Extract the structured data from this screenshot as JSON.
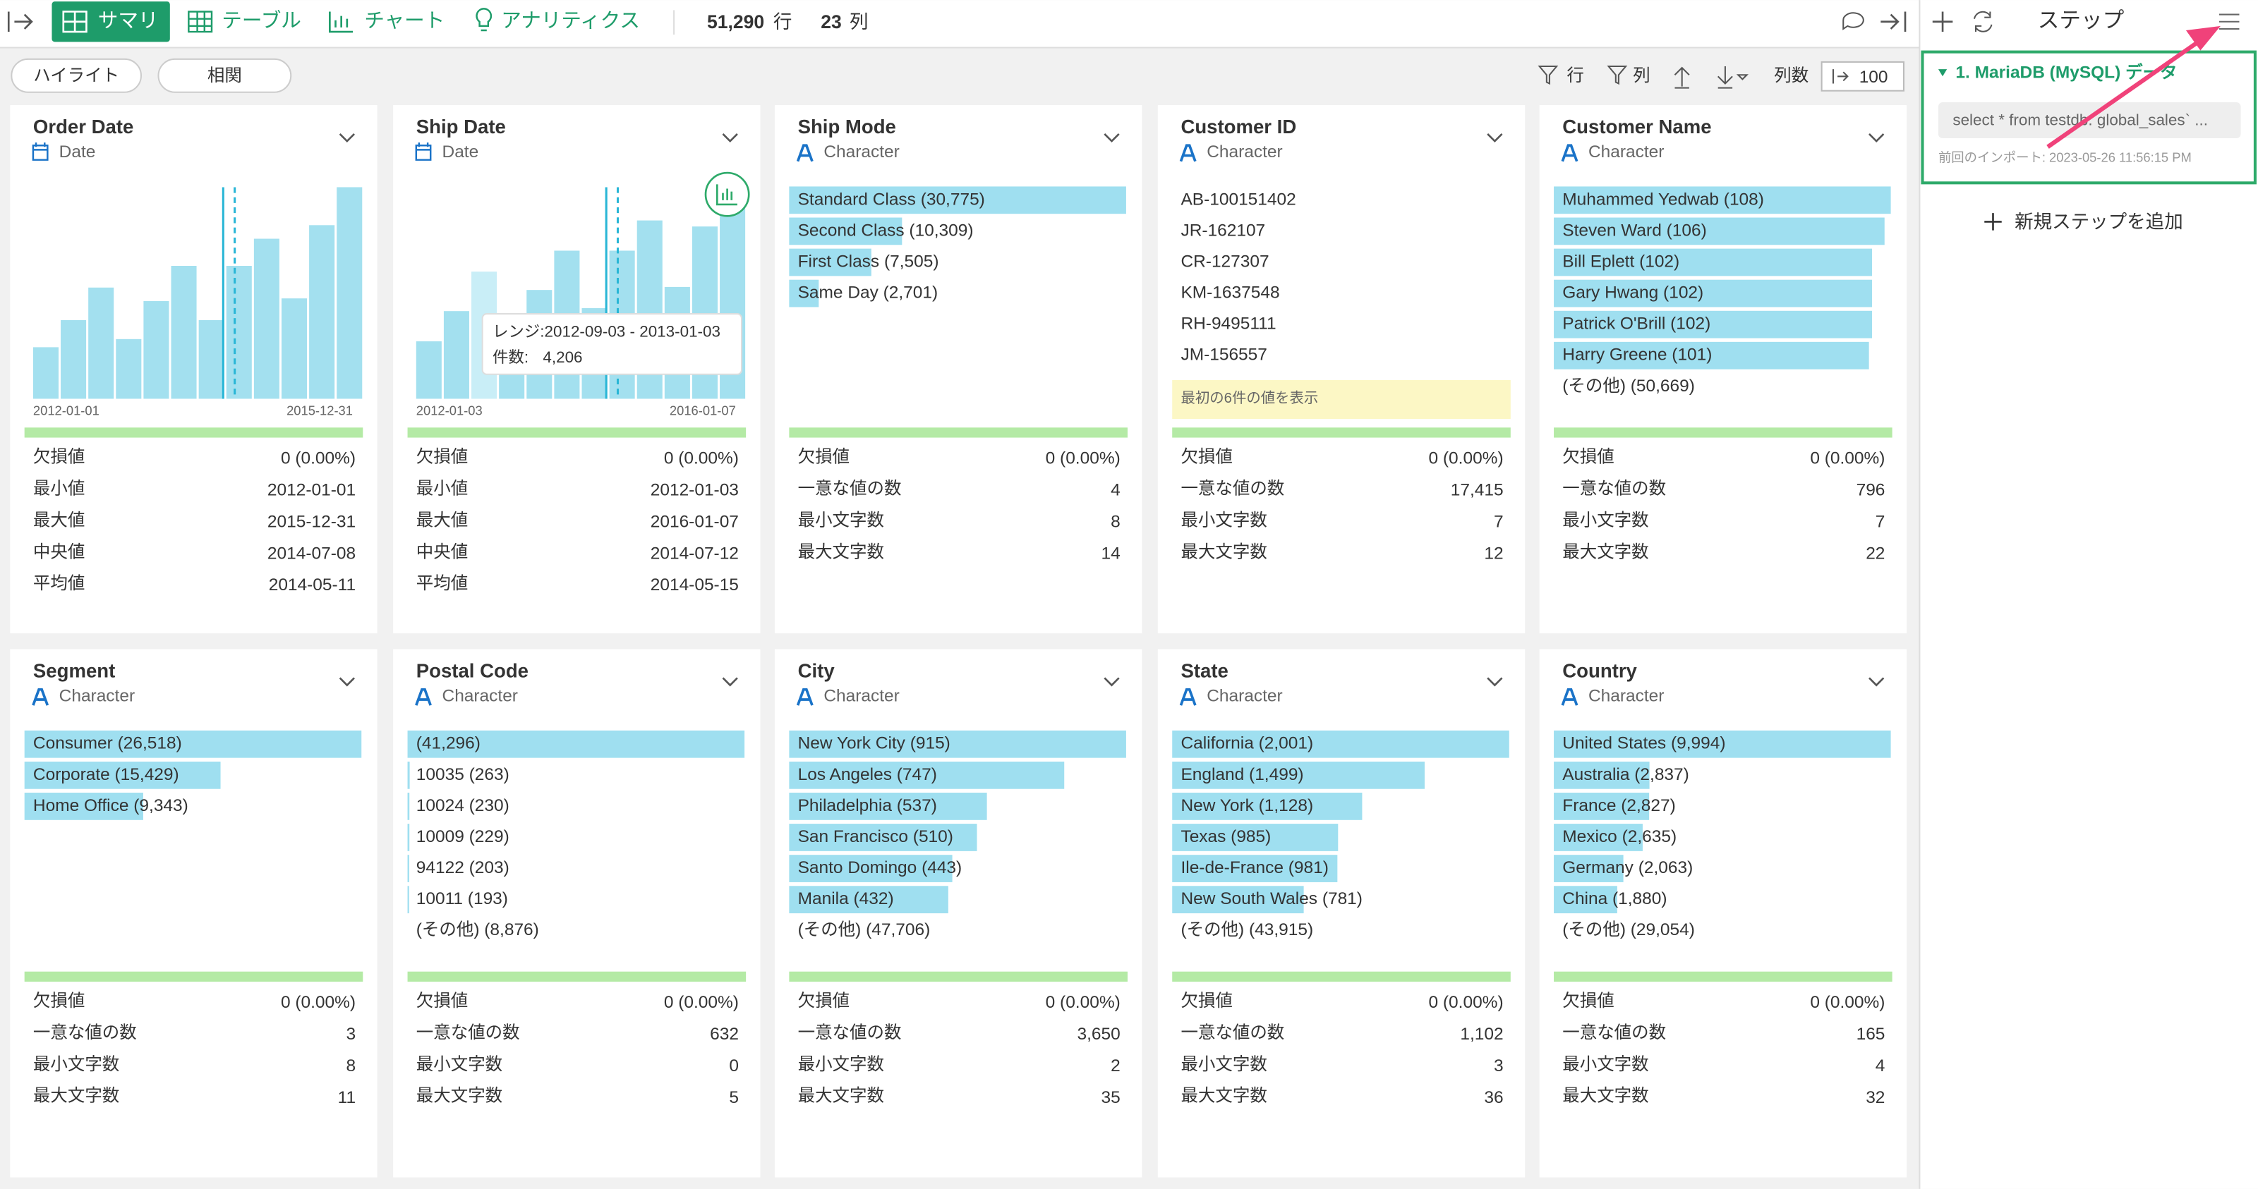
{
  "toolbar": {
    "tabs": [
      "サマリ",
      "テーブル",
      "チャート",
      "アナリティクス"
    ],
    "row_count": "51,290",
    "row_unit": "行",
    "col_count": "23",
    "col_unit": "列"
  },
  "subbar": {
    "buttons": [
      "ハイライト",
      "相関"
    ],
    "row_filter": "行",
    "col_filter": "列",
    "col_count_label": "列数",
    "col_count_value": "100"
  },
  "steps_panel": {
    "title": "ステップ",
    "steps": [
      {
        "name": "1. MariaDB (MySQL) データ",
        "query": "select * from testdb. global_sales` ...",
        "imported": "前回のインポート: 2023-05-26 11:56:15 PM"
      }
    ],
    "add_step": "新規ステップを追加"
  },
  "cards": [
    {
      "name": "Order Date",
      "type": "Date",
      "histogram": {
        "values": [
          1900,
          2900,
          4100,
          2200,
          3600,
          4900,
          2900,
          4900,
          5900,
          3700,
          6400,
          7800
        ],
        "start": "2012-01-01",
        "end": "2015-12-31"
      },
      "stats": [
        [
          "欠損値",
          "0 (0.00%)"
        ],
        [
          "最小値",
          "2012-01-01"
        ],
        [
          "最大値",
          "2015-12-31"
        ],
        [
          "中央値",
          "2014-07-08"
        ],
        [
          "平均値",
          "2014-05-11"
        ]
      ]
    },
    {
      "name": "Ship Date",
      "type": "Date",
      "histogram": {
        "values": [
          1900,
          2900,
          4206,
          2200,
          3600,
          4900,
          3000,
          4900,
          5900,
          3700,
          5700,
          7000
        ],
        "start": "2012-01-03",
        "end": "2016-01-07",
        "hovered_bin": 2,
        "tooltip": {
          "range": "レンジ:2012-09-03 - 2013-01-03",
          "count_label": "件数:",
          "count": "4,206"
        }
      },
      "stats": [
        [
          "欠損値",
          "0 (0.00%)"
        ],
        [
          "最小値",
          "2012-01-03"
        ],
        [
          "最大値",
          "2016-01-07"
        ],
        [
          "中央値",
          "2014-07-12"
        ],
        [
          "平均値",
          "2014-05-15"
        ]
      ]
    },
    {
      "name": "Ship Mode",
      "type": "Character",
      "bars": [
        {
          "text": "Standard Class (30,775)",
          "count": 30775
        },
        {
          "text": "Second Class (10,309)",
          "count": 10309
        },
        {
          "text": "First Class (7,505)",
          "count": 7505
        },
        {
          "text": "Same Day (2,701)",
          "count": 2701
        }
      ],
      "stats": [
        [
          "欠損値",
          "0 (0.00%)"
        ],
        [
          "一意な値の数",
          "4"
        ],
        [
          "最小文字数",
          "8"
        ],
        [
          "最大文字数",
          "14"
        ]
      ]
    },
    {
      "name": "Customer ID",
      "type": "Character",
      "list": [
        "AB-100151402",
        "JR-162107",
        "CR-127307",
        "KM-1637548",
        "RH-9495111",
        "JM-156557"
      ],
      "note": "最初の6件の値を表示",
      "stats": [
        [
          "欠損値",
          "0 (0.00%)"
        ],
        [
          "一意な値の数",
          "17,415"
        ],
        [
          "最小文字数",
          "7"
        ],
        [
          "最大文字数",
          "12"
        ]
      ]
    },
    {
      "name": "Customer Name",
      "type": "Character",
      "bars": [
        {
          "text": "Muhammed Yedwab (108)",
          "count": 108
        },
        {
          "text": "Steven Ward (106)",
          "count": 106
        },
        {
          "text": "Bill Eplett (102)",
          "count": 102
        },
        {
          "text": "Gary Hwang (102)",
          "count": 102
        },
        {
          "text": "Patrick O'Brill (102)",
          "count": 102
        },
        {
          "text": "Harry Greene (101)",
          "count": 101
        }
      ],
      "other": "(その他) (50,669)",
      "stats": [
        [
          "欠損値",
          "0 (0.00%)"
        ],
        [
          "一意な値の数",
          "796"
        ],
        [
          "最小文字数",
          "7"
        ],
        [
          "最大文字数",
          "22"
        ]
      ]
    },
    {
      "name": "Segment",
      "type": "Character",
      "bars": [
        {
          "text": "Consumer (26,518)",
          "count": 26518
        },
        {
          "text": "Corporate (15,429)",
          "count": 15429
        },
        {
          "text": "Home Office (9,343)",
          "count": 9343
        }
      ],
      "stats": [
        [
          "欠損値",
          "0 (0.00%)"
        ],
        [
          "一意な値の数",
          "3"
        ],
        [
          "最小文字数",
          "8"
        ],
        [
          "最大文字数",
          "11"
        ]
      ]
    },
    {
      "name": "Postal Code",
      "type": "Character",
      "bars": [
        {
          "text": "(41,296)",
          "count": 41296
        },
        {
          "text": "10035 (263)",
          "count": 263
        },
        {
          "text": "10024 (230)",
          "count": 230
        },
        {
          "text": "10009 (229)",
          "count": 229
        },
        {
          "text": "94122 (203)",
          "count": 203
        },
        {
          "text": "10011 (193)",
          "count": 193
        }
      ],
      "other": "(その他) (8,876)",
      "stats": [
        [
          "欠損値",
          "0 (0.00%)"
        ],
        [
          "一意な値の数",
          "632"
        ],
        [
          "最小文字数",
          "0"
        ],
        [
          "最大文字数",
          "5"
        ]
      ]
    },
    {
      "name": "City",
      "type": "Character",
      "bars": [
        {
          "text": "New York City (915)",
          "count": 915
        },
        {
          "text": "Los Angeles (747)",
          "count": 747
        },
        {
          "text": "Philadelphia (537)",
          "count": 537
        },
        {
          "text": "San Francisco (510)",
          "count": 510
        },
        {
          "text": "Santo Domingo (443)",
          "count": 443
        },
        {
          "text": "Manila (432)",
          "count": 432
        }
      ],
      "other": "(その他) (47,706)",
      "stats": [
        [
          "欠損値",
          "0 (0.00%)"
        ],
        [
          "一意な値の数",
          "3,650"
        ],
        [
          "最小文字数",
          "2"
        ],
        [
          "最大文字数",
          "35"
        ]
      ]
    },
    {
      "name": "State",
      "type": "Character",
      "bars": [
        {
          "text": "California (2,001)",
          "count": 2001
        },
        {
          "text": "England (1,499)",
          "count": 1499
        },
        {
          "text": "New York (1,128)",
          "count": 1128
        },
        {
          "text": "Texas (985)",
          "count": 985
        },
        {
          "text": "Ile-de-France (981)",
          "count": 981
        },
        {
          "text": "New South Wales (781)",
          "count": 781
        }
      ],
      "other": "(その他) (43,915)",
      "stats": [
        [
          "欠損値",
          "0 (0.00%)"
        ],
        [
          "一意な値の数",
          "1,102"
        ],
        [
          "最小文字数",
          "3"
        ],
        [
          "最大文字数",
          "36"
        ]
      ]
    },
    {
      "name": "Country",
      "type": "Character",
      "bars": [
        {
          "text": "United States (9,994)",
          "count": 9994
        },
        {
          "text": "Australia (2,837)",
          "count": 2837
        },
        {
          "text": "France (2,827)",
          "count": 2827
        },
        {
          "text": "Mexico (2,635)",
          "count": 2635
        },
        {
          "text": "Germany (2,063)",
          "count": 2063
        },
        {
          "text": "China (1,880)",
          "count": 1880
        }
      ],
      "other": "(その他) (29,054)",
      "stats": [
        [
          "欠損値",
          "0 (0.00%)"
        ],
        [
          "一意な値の数",
          "165"
        ],
        [
          "最小文字数",
          "4"
        ],
        [
          "最大文字数",
          "32"
        ]
      ]
    }
  ]
}
